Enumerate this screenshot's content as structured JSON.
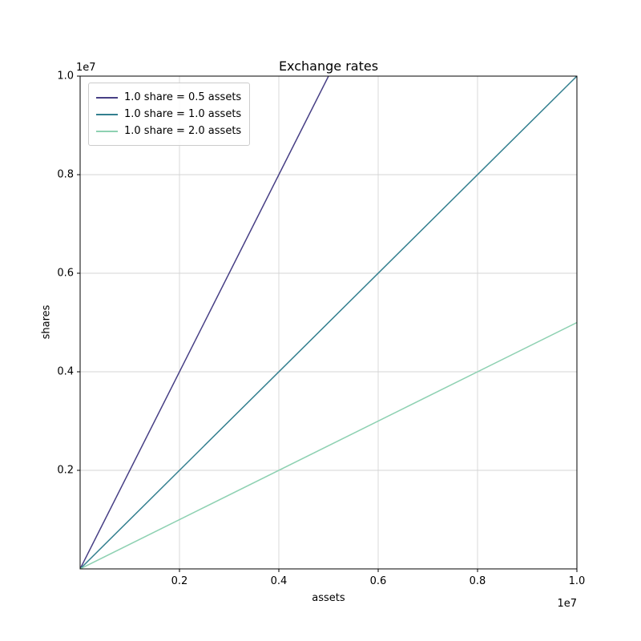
{
  "chart_data": {
    "type": "line",
    "title": "Exchange rates",
    "xlabel": "assets",
    "ylabel": "shares",
    "xlim": [
      0,
      10000000
    ],
    "ylim": [
      0,
      10000000
    ],
    "x_ticks": [
      2000000,
      4000000,
      6000000,
      8000000,
      10000000
    ],
    "x_tick_labels": [
      "0.2",
      "0.4",
      "0.6",
      "0.8",
      "1.0"
    ],
    "y_ticks": [
      2000000,
      4000000,
      6000000,
      8000000,
      10000000
    ],
    "y_tick_labels": [
      "0.2",
      "0.4",
      "0.6",
      "0.8",
      "1.0"
    ],
    "offset_text": "1e7",
    "grid": true,
    "legend_position": "upper left",
    "colors": {
      "grid": "#d4d4d4",
      "spine": "#000000",
      "background": "#ffffff"
    },
    "series": [
      {
        "name": "1.0 share = 0.5 assets",
        "color": "#473f85",
        "x": [
          0,
          10000000
        ],
        "y": [
          0,
          20000000
        ]
      },
      {
        "name": "1.0 share = 1.0 assets",
        "color": "#337f8f",
        "x": [
          0,
          10000000
        ],
        "y": [
          0,
          10000000
        ]
      },
      {
        "name": "1.0 share = 2.0 assets",
        "color": "#8ed1b2",
        "x": [
          0,
          10000000
        ],
        "y": [
          0,
          5000000
        ]
      }
    ]
  }
}
